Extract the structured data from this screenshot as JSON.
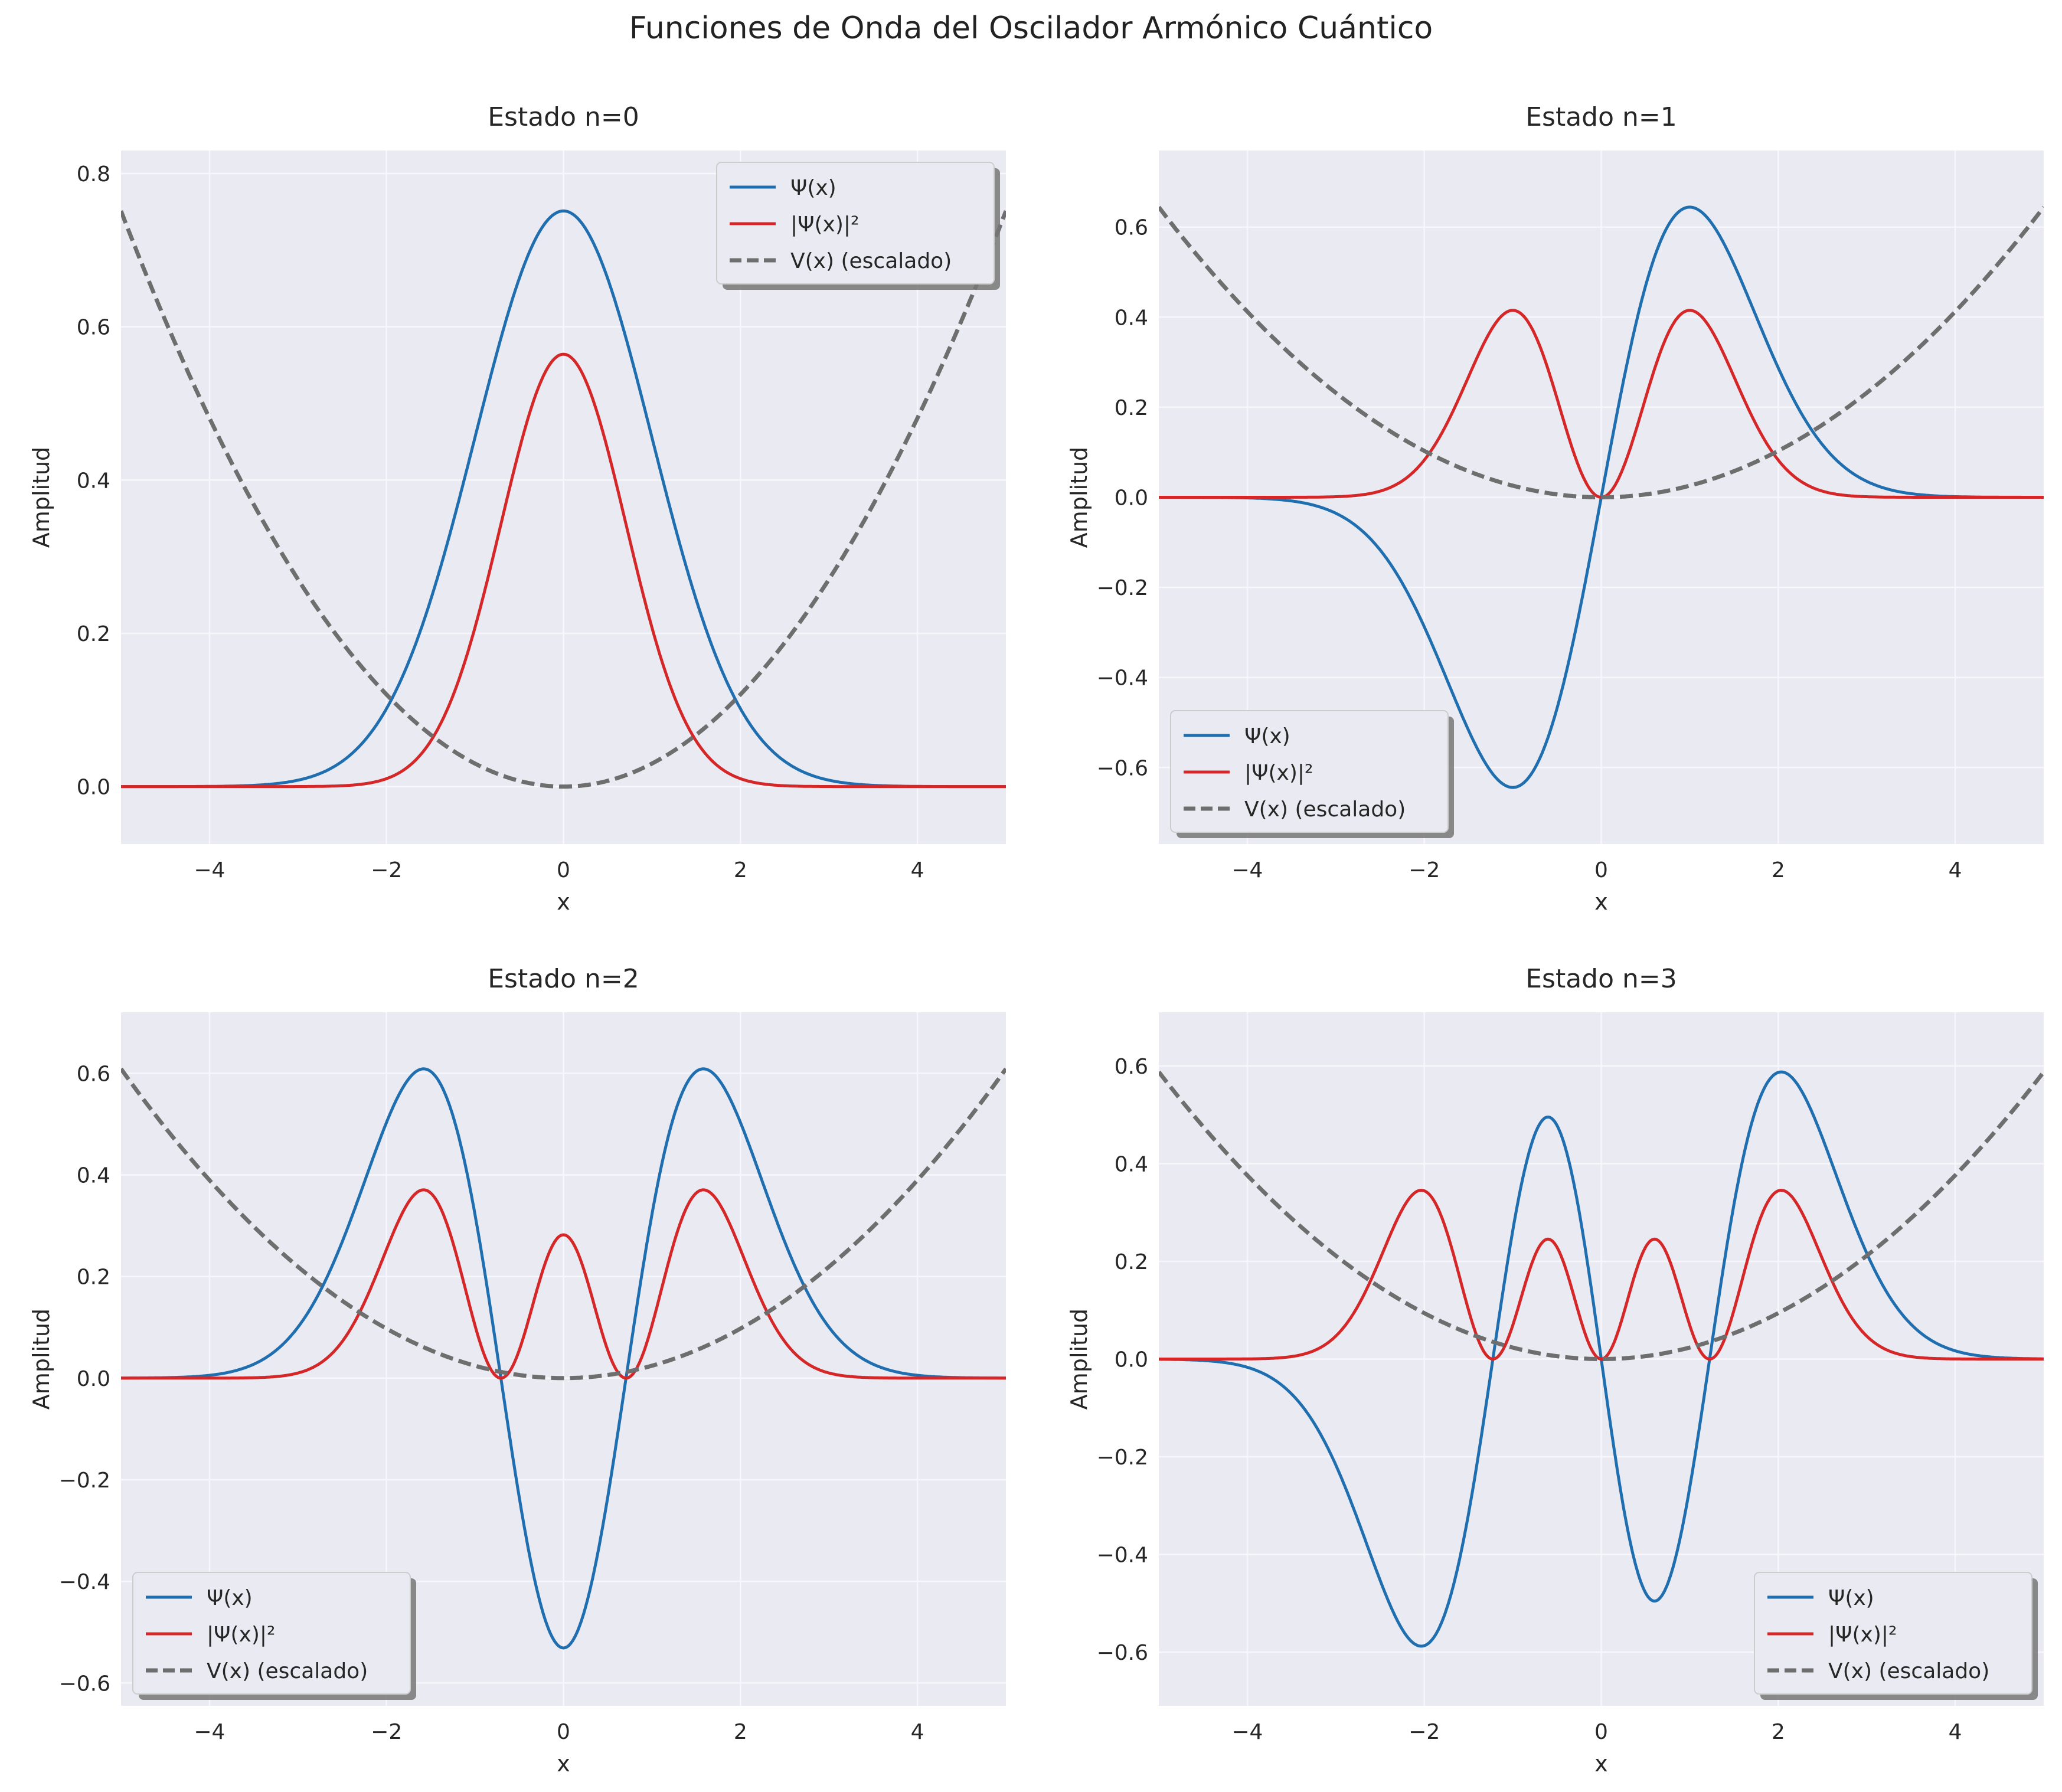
{
  "figure": {
    "suptitle": "Funciones de Onda del Oscilador Armónico Cuántico"
  },
  "colors": {
    "background": "#ffffff",
    "axes_bg": "#eaeaf2",
    "grid": "#f7f7fb",
    "psi": "#1f6fb0",
    "prob": "#d62728",
    "potential": "#6e6e6e"
  },
  "legend_labels": [
    "Ψ(x)",
    "|Ψ(x)|²",
    "V(x) (escalado)"
  ],
  "chart_data": [
    {
      "type": "line",
      "n": 0,
      "title": "Estado n=0",
      "xlabel": "x",
      "ylabel": "Amplitud",
      "xlim": [
        -5,
        5
      ],
      "ylim": [
        -0.075,
        0.83
      ],
      "xticks": [
        -4,
        -2,
        0,
        2,
        4
      ],
      "xtick_labels": [
        "−4",
        "−2",
        "0",
        "2",
        "4"
      ],
      "yticks": [
        0.0,
        0.2,
        0.4,
        0.6,
        0.8
      ],
      "ytick_labels": [
        "0.0",
        "0.2",
        "0.4",
        "0.6",
        "0.8"
      ],
      "legend": "upper right",
      "grid": true,
      "series": [
        {
          "name": "Ψ(x)",
          "style": "solid",
          "peak_value": 0.751
        },
        {
          "name": "|Ψ(x)|²",
          "style": "solid",
          "peak_value": 0.564
        },
        {
          "name": "V(x) (escalado)",
          "style": "dashed",
          "value_at_edge": 0.751
        }
      ]
    },
    {
      "type": "line",
      "n": 1,
      "title": "Estado n=1",
      "xlabel": "x",
      "ylabel": "Amplitud",
      "xlim": [
        -5,
        5
      ],
      "ylim": [
        -0.77,
        0.77
      ],
      "xticks": [
        -4,
        -2,
        0,
        2,
        4
      ],
      "xtick_labels": [
        "−4",
        "−2",
        "0",
        "2",
        "4"
      ],
      "yticks": [
        -0.6,
        -0.4,
        -0.2,
        0.0,
        0.2,
        0.4,
        0.6
      ],
      "ytick_labels": [
        "−0.6",
        "−0.4",
        "−0.2",
        "0.0",
        "0.2",
        "0.4",
        "0.6"
      ],
      "legend": "lower left",
      "grid": true,
      "series": [
        {
          "name": "Ψ(x)",
          "style": "solid",
          "extrema": [
            [
              -1.0,
              -0.644
            ],
            [
              1.0,
              0.644
            ]
          ]
        },
        {
          "name": "|Ψ(x)|²",
          "style": "solid",
          "peaks": [
            [
              -1.0,
              0.415
            ],
            [
              1.0,
              0.415
            ]
          ]
        },
        {
          "name": "V(x) (escalado)",
          "style": "dashed",
          "value_at_edge": 0.644
        }
      ]
    },
    {
      "type": "line",
      "n": 2,
      "title": "Estado n=2",
      "xlabel": "x",
      "ylabel": "Amplitud",
      "xlim": [
        -5,
        5
      ],
      "ylim": [
        -0.645,
        0.72
      ],
      "xticks": [
        -4,
        -2,
        0,
        2,
        4
      ],
      "xtick_labels": [
        "−4",
        "−2",
        "0",
        "2",
        "4"
      ],
      "yticks": [
        -0.6,
        -0.4,
        -0.2,
        0.0,
        0.2,
        0.4,
        0.6
      ],
      "ytick_labels": [
        "−0.6",
        "−0.4",
        "−0.2",
        "0.0",
        "0.2",
        "0.4",
        "0.6"
      ],
      "legend": "lower left",
      "grid": true,
      "series": [
        {
          "name": "Ψ(x)",
          "style": "solid",
          "extrema": [
            [
              -1.58,
              0.61
            ],
            [
              0,
              -0.531
            ],
            [
              1.58,
              0.61
            ]
          ]
        },
        {
          "name": "|Ψ(x)|²",
          "style": "solid",
          "peaks": [
            [
              -1.58,
              0.372
            ],
            [
              0,
              0.282
            ],
            [
              1.58,
              0.372
            ]
          ]
        },
        {
          "name": "V(x) (escalado)",
          "style": "dashed",
          "value_at_edge": 0.61
        }
      ]
    },
    {
      "type": "line",
      "n": 3,
      "title": "Estado n=3",
      "xlabel": "x",
      "ylabel": "Amplitud",
      "xlim": [
        -5,
        5
      ],
      "ylim": [
        -0.71,
        0.71
      ],
      "xticks": [
        -4,
        -2,
        0,
        2,
        4
      ],
      "xtick_labels": [
        "−4",
        "−2",
        "0",
        "2",
        "4"
      ],
      "yticks": [
        -0.6,
        -0.4,
        -0.2,
        0.0,
        0.2,
        0.4,
        0.6
      ],
      "ytick_labels": [
        "−0.6",
        "−0.4",
        "−0.2",
        "0.0",
        "0.2",
        "0.4",
        "0.6"
      ],
      "legend": "lower right",
      "grid": true,
      "series": [
        {
          "name": "Ψ(x)",
          "style": "solid",
          "extrema": [
            [
              -2.02,
              -0.588
            ],
            [
              -0.6,
              0.495
            ],
            [
              0.6,
              -0.495
            ],
            [
              2.02,
              0.588
            ]
          ]
        },
        {
          "name": "|Ψ(x)|²",
          "style": "solid",
          "peaks": [
            [
              -2.02,
              0.346
            ],
            [
              -0.6,
              0.245
            ],
            [
              0.6,
              0.245
            ],
            [
              2.02,
              0.346
            ]
          ]
        },
        {
          "name": "V(x) (escalado)",
          "style": "dashed",
          "value_at_edge": 0.588
        }
      ]
    }
  ]
}
